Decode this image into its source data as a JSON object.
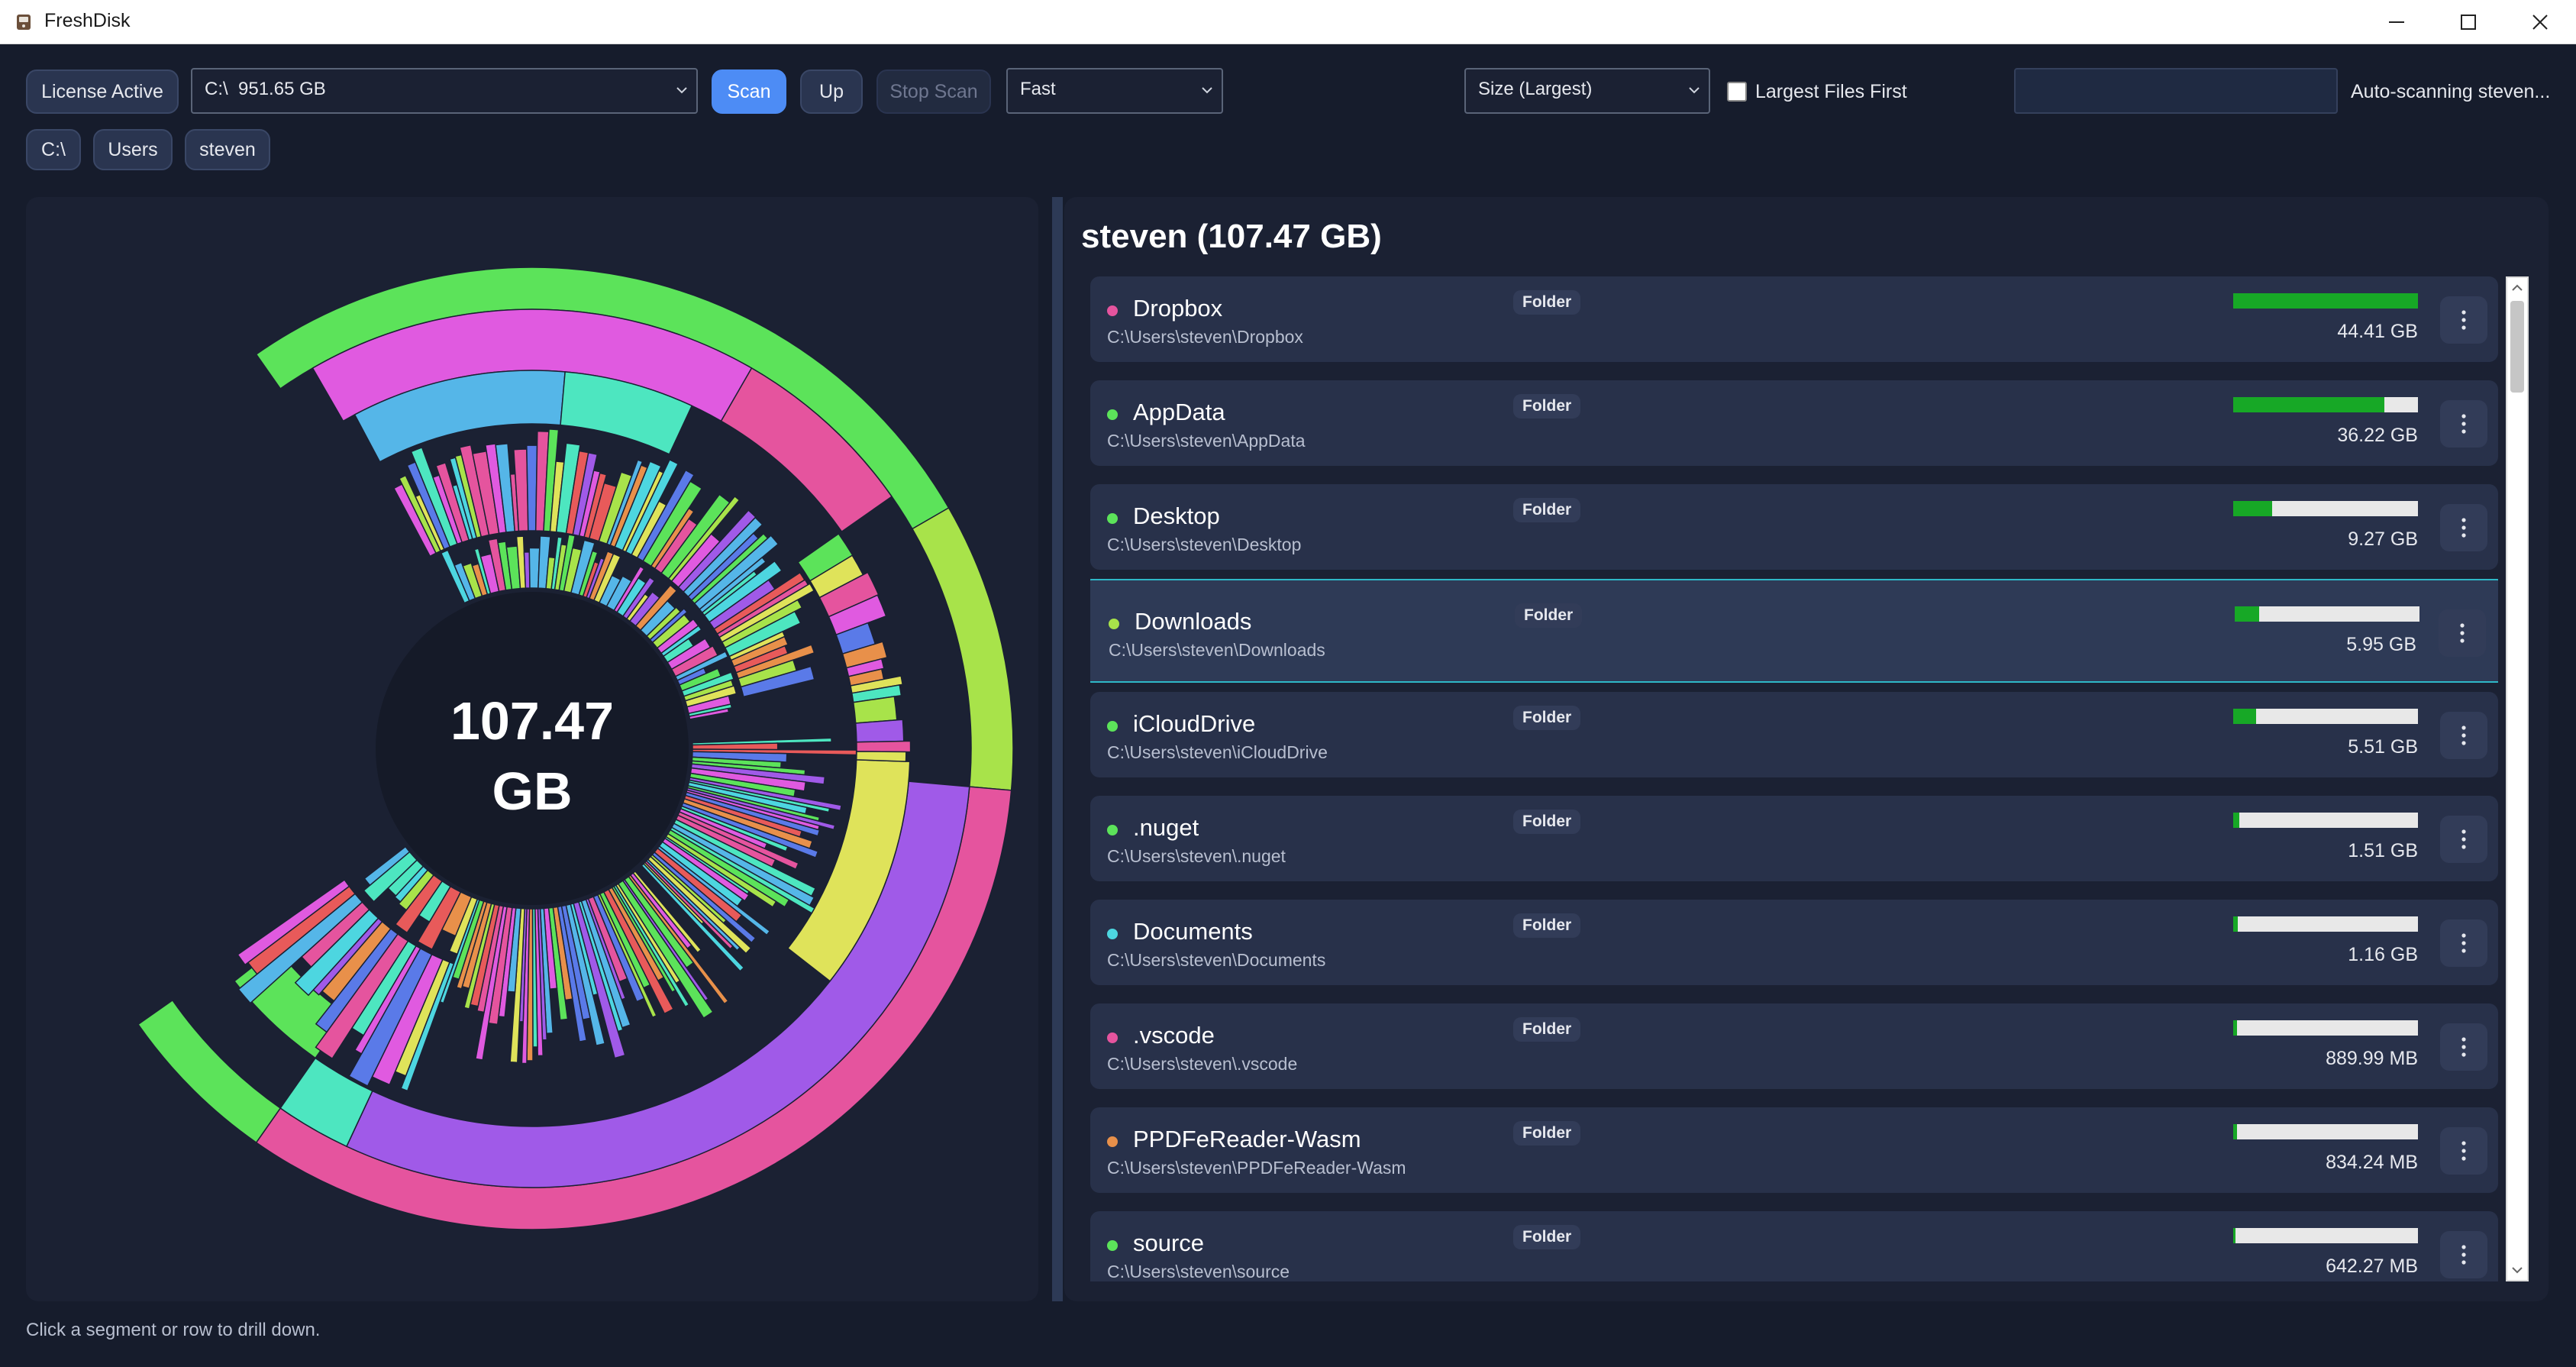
{
  "window": {
    "title": "FreshDisk"
  },
  "toolbar": {
    "license_label": "License Active",
    "drive_select": "C:\\  951.65 GB",
    "scan_label": "Scan",
    "up_label": "Up",
    "stop_scan_label": "Stop Scan",
    "speed_select": "Fast",
    "sort_select": "Size (Largest)",
    "largest_first_label": "Largest Files First",
    "largest_first_checked": false,
    "search_value": "",
    "status": "Auto-scanning steven..."
  },
  "breadcrumbs": [
    "C:\\",
    "Users",
    "steven"
  ],
  "chart": {
    "center_value": "107.47",
    "center_unit": "GB"
  },
  "details": {
    "title": "steven (107.47 GB)",
    "items": [
      {
        "name": "Dropbox",
        "path": "C:\\Users\\steven\\Dropbox",
        "type": "Folder",
        "size": "44.41 GB",
        "fraction": 1.0,
        "dot_color": "#e5549e"
      },
      {
        "name": "AppData",
        "path": "C:\\Users\\steven\\AppData",
        "type": "Folder",
        "size": "36.22 GB",
        "fraction": 0.82,
        "dot_color": "#5ce35a"
      },
      {
        "name": "Desktop",
        "path": "C:\\Users\\steven\\Desktop",
        "type": "Folder",
        "size": "9.27 GB",
        "fraction": 0.21,
        "dot_color": "#5ce35a"
      },
      {
        "name": "Downloads",
        "path": "C:\\Users\\steven\\Downloads",
        "type": "Folder",
        "size": "5.95 GB",
        "fraction": 0.134,
        "dot_color": "#a8e34a"
      },
      {
        "name": "iCloudDrive",
        "path": "C:\\Users\\steven\\iCloudDrive",
        "type": "Folder",
        "size": "5.51 GB",
        "fraction": 0.124,
        "dot_color": "#5ce35a"
      },
      {
        "name": ".nuget",
        "path": "C:\\Users\\steven\\.nuget",
        "type": "Folder",
        "size": "1.51 GB",
        "fraction": 0.034,
        "dot_color": "#5ce35a"
      },
      {
        "name": "Documents",
        "path": "C:\\Users\\steven\\Documents",
        "type": "Folder",
        "size": "1.16 GB",
        "fraction": 0.026,
        "dot_color": "#4dd6e0"
      },
      {
        "name": ".vscode",
        "path": "C:\\Users\\steven\\.vscode",
        "type": "Folder",
        "size": "889.99 MB",
        "fraction": 0.02,
        "dot_color": "#e5549e"
      },
      {
        "name": "PPDFeReader-Wasm",
        "path": "C:\\Users\\steven\\PPDFeReader-Wasm",
        "type": "Folder",
        "size": "834.24 MB",
        "fraction": 0.019,
        "dot_color": "#e8904a"
      },
      {
        "name": "source",
        "path": "C:\\Users\\steven\\source",
        "type": "Folder",
        "size": "642.27 MB",
        "fraction": 0.014,
        "dot_color": "#5ce35a"
      }
    ],
    "selected_index": 3
  },
  "footer": {
    "hint": "Click a segment or row to drill down."
  },
  "colors": {
    "accent": "#4d8cf5",
    "bar_fill": "#17a826",
    "selection_border": "#2fb7c7",
    "palette": [
      "#5ce35a",
      "#e05ae0",
      "#e5549e",
      "#a05ae8",
      "#55b6e8",
      "#4de6c0",
      "#a8e34a",
      "#dfe35a",
      "#e8904a",
      "#5a7ae8",
      "#e85a5a",
      "#4dd6e0"
    ]
  },
  "icons": {
    "app": "freshdisk-icon",
    "minimize": "minimize-icon",
    "maximize": "maximize-icon",
    "close": "close-icon",
    "more": "more-vertical-icon"
  }
}
